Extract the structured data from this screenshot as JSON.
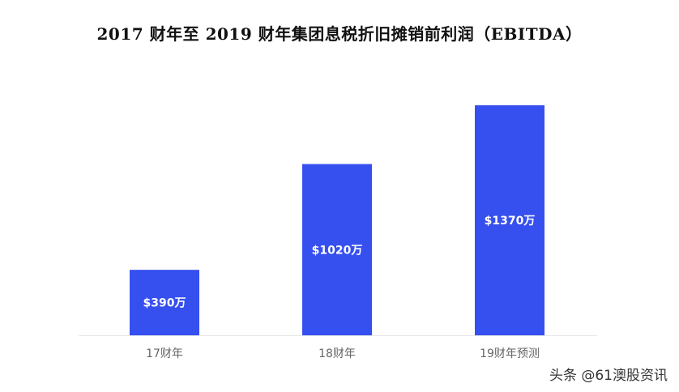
{
  "chart_data": {
    "type": "bar",
    "title": "2017 财年至 2019 财年集团息税折旧摊销前利润（EBITDA）",
    "categories": [
      "17财年",
      "18财年",
      "19财年预测"
    ],
    "values": [
      390,
      1020,
      1370
    ],
    "data_labels": [
      "$390万",
      "$1020万",
      "$1370万"
    ],
    "unit": "万",
    "xlabel": "",
    "ylabel": "",
    "ylim": [
      0,
      1500
    ],
    "grid": false,
    "legend": "none",
    "colors": {
      "bar": "#364FEF",
      "data_label": "#FFFFFF",
      "axis": "#E6E6E6",
      "tick_label": "#666666"
    }
  },
  "watermark": "头条 @61澳股资讯"
}
